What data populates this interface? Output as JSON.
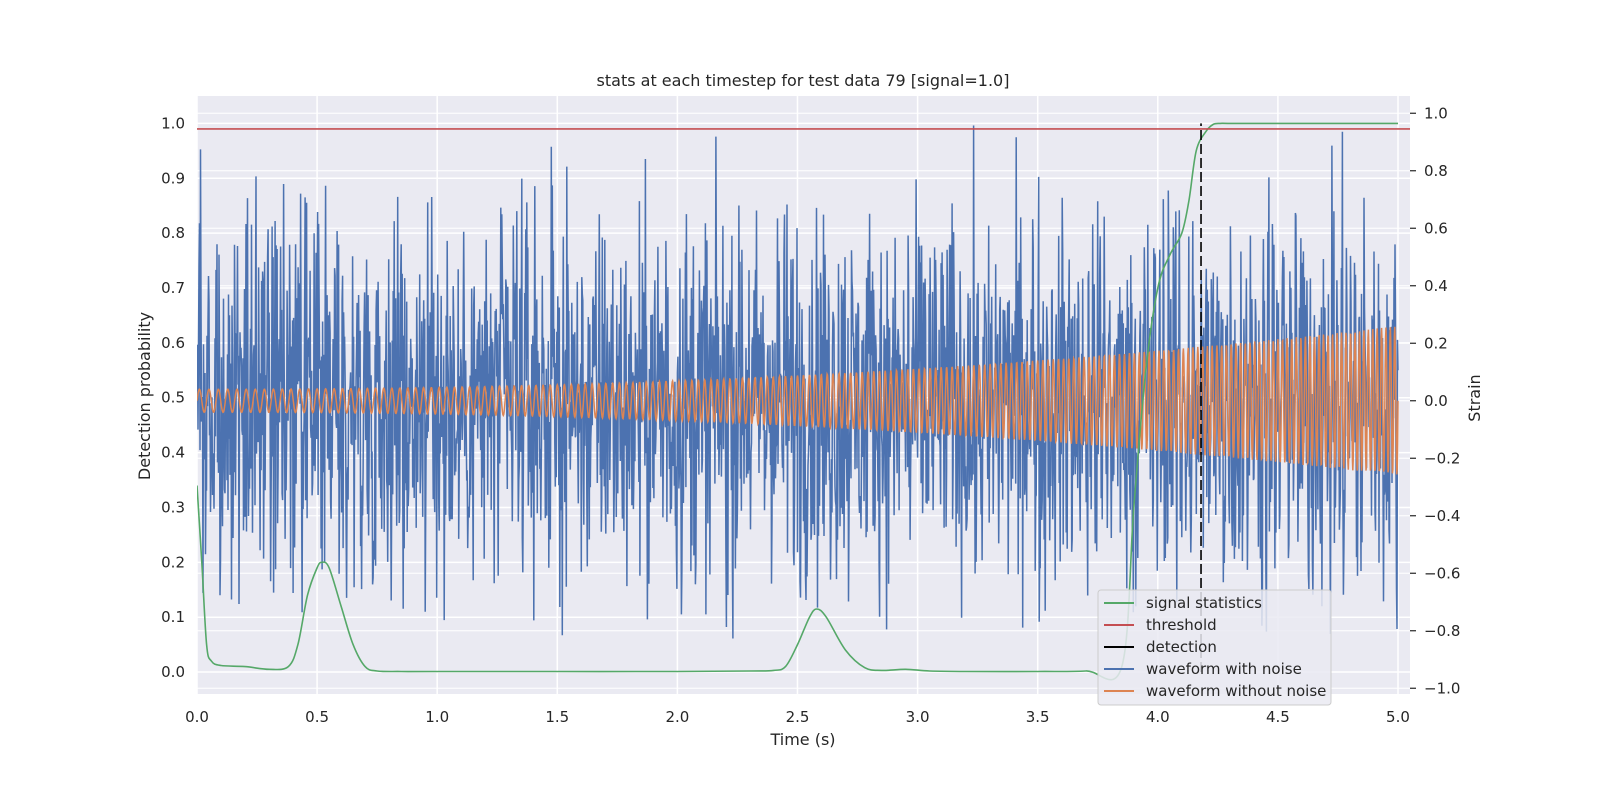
{
  "chart_data": {
    "type": "line",
    "title": "stats at each timestep for test data 79 [signal=1.0]",
    "xlabel": "Time (s)",
    "ylabel_left": "Detection probability",
    "ylabel_right": "Strain",
    "xlim": [
      0.0,
      5.05
    ],
    "ylim_left": [
      -0.04,
      1.05
    ],
    "ylim_right": [
      -1.02,
      1.06
    ],
    "x_ticks": [
      0.0,
      0.5,
      1.0,
      1.5,
      2.0,
      2.5,
      3.0,
      3.5,
      4.0,
      4.5,
      5.0
    ],
    "x_tick_labels": [
      "0.0",
      "0.5",
      "1.0",
      "1.5",
      "2.0",
      "2.5",
      "3.0",
      "3.5",
      "4.0",
      "4.5",
      "5.0"
    ],
    "y_left_ticks": [
      0.0,
      0.1,
      0.2,
      0.3,
      0.4,
      0.5,
      0.6,
      0.7,
      0.8,
      0.9,
      1.0
    ],
    "y_left_tick_labels": [
      "0.0",
      "0.1",
      "0.2",
      "0.3",
      "0.4",
      "0.5",
      "0.6",
      "0.7",
      "0.8",
      "0.9",
      "1.0"
    ],
    "y_right_ticks": [
      -1.0,
      -0.8,
      -0.6,
      -0.4,
      -0.2,
      0.0,
      0.2,
      0.4,
      0.6,
      0.8,
      1.0
    ],
    "y_right_tick_labels": [
      "−1.0",
      "−0.8",
      "−0.6",
      "−0.4",
      "−0.2",
      "0.0",
      "0.2",
      "0.4",
      "0.6",
      "0.8",
      "1.0"
    ],
    "grid": true,
    "legend_position": "lower-right",
    "threshold": 0.99,
    "detection_time": 4.18,
    "series": [
      {
        "name": "signal statistics",
        "color": "#55a868",
        "axis": "left",
        "x": [
          0.0,
          0.02,
          0.04,
          0.06,
          0.1,
          0.2,
          0.3,
          0.38,
          0.42,
          0.46,
          0.5,
          0.52,
          0.55,
          0.6,
          0.65,
          0.7,
          0.75,
          0.85,
          1.0,
          1.5,
          2.0,
          2.3,
          2.4,
          2.45,
          2.5,
          2.55,
          2.58,
          2.62,
          2.7,
          2.78,
          2.85,
          2.95,
          3.05,
          3.2,
          3.5,
          3.7,
          3.85,
          3.9,
          3.95,
          4.0,
          4.05,
          4.1,
          4.13,
          4.16,
          4.2,
          4.23,
          4.26,
          4.3,
          4.5,
          5.0
        ],
        "y": [
          0.34,
          0.2,
          0.05,
          0.02,
          0.012,
          0.01,
          0.005,
          0.01,
          0.05,
          0.14,
          0.19,
          0.2,
          0.19,
          0.12,
          0.05,
          0.01,
          0.002,
          0.001,
          0.001,
          0.001,
          0.001,
          0.002,
          0.003,
          0.01,
          0.05,
          0.1,
          0.115,
          0.1,
          0.04,
          0.008,
          0.003,
          0.005,
          0.002,
          0.001,
          0.001,
          0.002,
          0.01,
          0.3,
          0.55,
          0.7,
          0.76,
          0.8,
          0.86,
          0.95,
          0.985,
          0.998,
          1.0,
          1.0,
          1.0,
          1.0
        ]
      },
      {
        "name": "threshold",
        "color": "#c44e52",
        "axis": "left",
        "x": [
          0.0,
          5.05
        ],
        "y": [
          0.99,
          0.99
        ]
      },
      {
        "name": "detection",
        "color": "#000000",
        "axis": "left",
        "x": [
          4.18,
          4.18
        ],
        "y": [
          0.0,
          1.0
        ],
        "style": "dashed"
      },
      {
        "name": "waveform with noise",
        "color": "#4c72b0",
        "axis": "right",
        "model": "random noise, amplitude ~0.35, extrema within [-0.95, 1.0]"
      },
      {
        "name": "waveform without noise",
        "color": "#dd8452",
        "axis": "right",
        "model": "chirp sinusoid, amplitude 0.04 at t=0 growing to 0.26 at t=5, frequency ~25 Hz rising to ~55 Hz, centered at 0.0"
      }
    ]
  }
}
